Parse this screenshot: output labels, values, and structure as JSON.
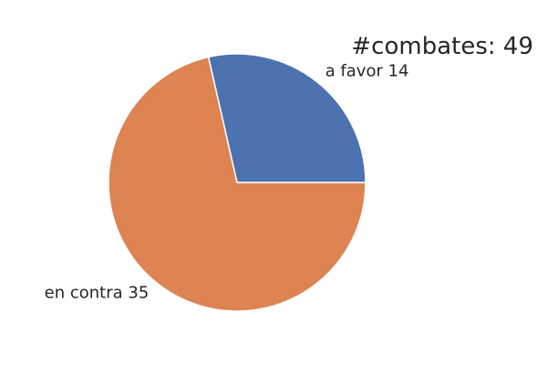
{
  "chart_data": {
    "type": "pie",
    "title": "#combates: 49",
    "slices": [
      {
        "label": "a favor",
        "value": 14,
        "display": "a favor 14",
        "color": "#4C72B0"
      },
      {
        "label": "en contra",
        "value": 35,
        "display": "en contra 35",
        "color": "#DD8452"
      }
    ],
    "start_angle": 0,
    "direction": "counterclockwise"
  }
}
